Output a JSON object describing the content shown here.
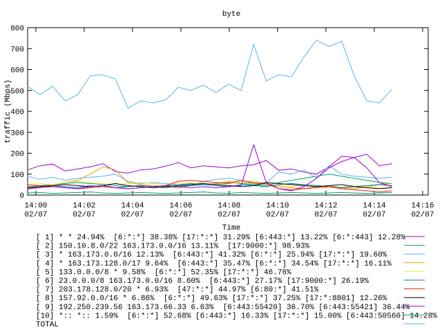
{
  "chart_data": {
    "type": "line",
    "title": "byte",
    "ylabel": "traffic (Mbps)",
    "xlabel": "Time",
    "xlim": [
      -0.34,
      16.23
    ],
    "xticks": [
      {
        "value": 0,
        "label": "14:00\n02/07"
      },
      {
        "value": 2,
        "label": "14:02\n02/07"
      },
      {
        "value": 4,
        "label": "14:04\n02/07"
      },
      {
        "value": 6,
        "label": "14:06\n02/07"
      },
      {
        "value": 8,
        "label": "14:08\n02/07"
      },
      {
        "value": 10,
        "label": "14:10\n02/07"
      },
      {
        "value": 12,
        "label": "14:12\n02/07"
      },
      {
        "value": 14,
        "label": "14:14\n02/07"
      },
      {
        "value": 16,
        "label": "14:16\n02/07"
      }
    ],
    "ylim": [
      0,
      800
    ],
    "yticks": [
      0,
      100,
      200,
      300,
      400,
      500,
      600,
      700,
      800
    ],
    "x": [
      -0.35,
      0.17,
      0.69,
      1.21,
      1.73,
      2.25,
      2.77,
      3.29,
      3.81,
      4.33,
      4.85,
      5.37,
      5.89,
      6.41,
      6.93,
      7.45,
      7.97,
      8.49,
      9.01,
      9.53,
      10.05,
      10.57,
      11.09,
      11.61,
      12.13,
      12.65,
      13.17,
      13.69,
      14.21,
      14.73
    ],
    "series": [
      {
        "name": "[ 1] * * 24.94%  [6:*:*] 38.38% [17:*:*] 31.29% [6:443:*] 13.22% [6:*:443] 12.28%",
        "color": "#a000c0",
        "values": [
          120,
          140,
          148,
          115,
          125,
          135,
          150,
          112,
          105,
          120,
          125,
          138,
          155,
          130,
          140,
          135,
          130,
          140,
          145,
          165,
          118,
          125,
          110,
          100,
          135,
          185,
          180,
          195,
          140,
          150
        ]
      },
      {
        "name": "[ 2] 150.10.8.0/22 163.173.0.0/16 13.11%  [17:9000:*] 98.93%",
        "color": "#009e73",
        "values": [
          40,
          45,
          50,
          55,
          60,
          55,
          50,
          45,
          40,
          45,
          40,
          45,
          50,
          55,
          50,
          55,
          60,
          55,
          50,
          45,
          60,
          70,
          80,
          90,
          100,
          90,
          80,
          70,
          60,
          55
        ]
      },
      {
        "name": "[ 3] * 163.173.0.0/16 12.13%  [6:443:*] 41.32% [6:*:*] 25.94% [17:*:*] 19.60%",
        "color": "#56b4e9",
        "values": [
          90,
          75,
          85,
          70,
          80,
          85,
          90,
          100,
          65,
          55,
          60,
          55,
          50,
          45,
          65,
          75,
          80,
          70,
          55,
          60,
          110,
          100,
          120,
          80,
          140,
          100,
          90,
          85,
          80,
          85
        ]
      },
      {
        "name": "[ 4] * 163.173.128.0/17 9.64%  [6:443:*] 35.47% [6:*:*] 34.54% [17:*:*] 16.11%",
        "color": "#e69f00",
        "values": [
          30,
          40,
          50,
          60,
          70,
          100,
          135,
          120,
          60,
          50,
          45,
          40,
          35,
          45,
          50,
          55,
          65,
          60,
          55,
          50,
          40,
          35,
          30,
          40,
          45,
          35,
          30,
          40,
          50,
          55
        ]
      },
      {
        "name": "[ 5] 133.0.0.0/8 * 9.58%  [6:*:*] 52.35% [17:*:*] 46.76%",
        "color": "#f0e442",
        "values": [
          60,
          55,
          50,
          60,
          65,
          60,
          55,
          50,
          55,
          60,
          55,
          50,
          55,
          60,
          55,
          50,
          55,
          60,
          70,
          50,
          45,
          40,
          45,
          40,
          35,
          40,
          45,
          40,
          35,
          40
        ]
      },
      {
        "name": "[ 6] 23.0.0.0/8 163.173.0.0/16 8.60%  [6:443:*] 27.17% [17:9000:*] 26.19%",
        "color": "#0072b2",
        "values": [
          35,
          40,
          45,
          40,
          35,
          45,
          40,
          35,
          40,
          45,
          40,
          35,
          40,
          45,
          50,
          45,
          40,
          50,
          45,
          40,
          50,
          55,
          50,
          45,
          40,
          35,
          40,
          45,
          50,
          45
        ]
      },
      {
        "name": "[ 7] 203.178.128.0/20 * 6.93%  [47:*:*] 44.97% [6:80:*] 41.51%",
        "color": "#e51e10",
        "values": [
          50,
          45,
          40,
          35,
          30,
          35,
          40,
          35,
          30,
          35,
          40,
          45,
          65,
          70,
          65,
          60,
          55,
          70,
          60,
          55,
          30,
          25,
          30,
          35,
          40,
          30,
          25,
          20,
          15,
          20
        ]
      },
      {
        "name": "[ 8] 157.92.0.0/16 * 6.86%  [6:*:*] 49.63% [17:*:*] 37.25% [17:*:8801] 12.26%",
        "color": "#000000",
        "values": [
          35,
          40,
          45,
          50,
          45,
          40,
          45,
          55,
          45,
          40,
          35,
          40,
          45,
          50,
          55,
          50,
          45,
          40,
          45,
          60,
          55,
          50,
          45,
          40,
          45,
          50,
          40,
          35,
          30,
          35
        ]
      },
      {
        "name": "[ 9] 192.250.239.56 163.173.66.33 6.63%  [6:443:55420] 36.70% [6:443:55421] 36.44%",
        "color": "#9400d3",
        "values": [
          30,
          35,
          40,
          35,
          30,
          40,
          45,
          35,
          30,
          35,
          40,
          45,
          40,
          35,
          40,
          35,
          40,
          45,
          240,
          60,
          30,
          20,
          40,
          80,
          130,
          160,
          180,
          130,
          60,
          40
        ]
      },
      {
        "name": "[10] *:: *:: 1.59%  [6:*:*] 52.68% [6:443:*] 16.33% [17:*:*] 15.00% [6:443:50560] 14.28%",
        "color": "#009e73",
        "values": [
          10,
          12,
          8,
          10,
          12,
          15,
          10,
          8,
          10,
          12,
          10,
          8,
          10,
          12,
          15,
          10,
          8,
          12,
          10,
          8,
          10,
          12,
          10,
          8,
          10,
          12,
          10,
          8,
          10,
          12
        ]
      },
      {
        "name": "TOTAL",
        "color": "#56b4e9",
        "values": [
          520,
          480,
          520,
          450,
          480,
          570,
          575,
          555,
          415,
          450,
          440,
          455,
          515,
          500,
          525,
          490,
          530,
          500,
          720,
          545,
          575,
          565,
          660,
          740,
          710,
          735,
          570,
          450,
          440,
          505
        ]
      }
    ]
  }
}
